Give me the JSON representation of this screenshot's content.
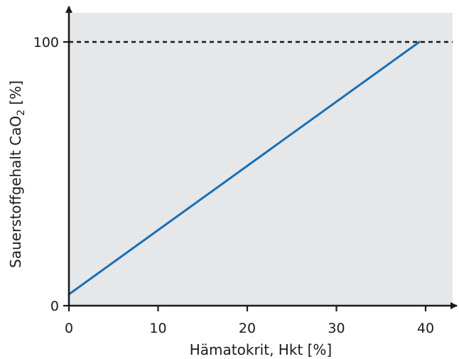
{
  "chart_data": {
    "type": "line",
    "xlabel": "Hämatokrit, Hkt [%]",
    "ylabel": {
      "main": "Sauerstoffgehalt CaO",
      "subscript": "2",
      "unit": " [%]"
    },
    "xlim": [
      0,
      43
    ],
    "ylim": [
      0,
      100
    ],
    "x_ticks": [
      0,
      10,
      20,
      30,
      40
    ],
    "y_ticks": [
      0,
      100
    ],
    "grid": false,
    "legend": "none",
    "series": [
      {
        "x": [
          0,
          39.3
        ],
        "y": [
          4.3,
          100
        ]
      }
    ],
    "reference_lines": [
      {
        "orientation": "horizontal",
        "y": 100,
        "style": "dashed"
      }
    ],
    "colors": {
      "plot_background": "#e6e7e9",
      "line": "#1a6fb4",
      "axis": "#1a1a1a",
      "reference_line": "#1a1a1a"
    }
  }
}
